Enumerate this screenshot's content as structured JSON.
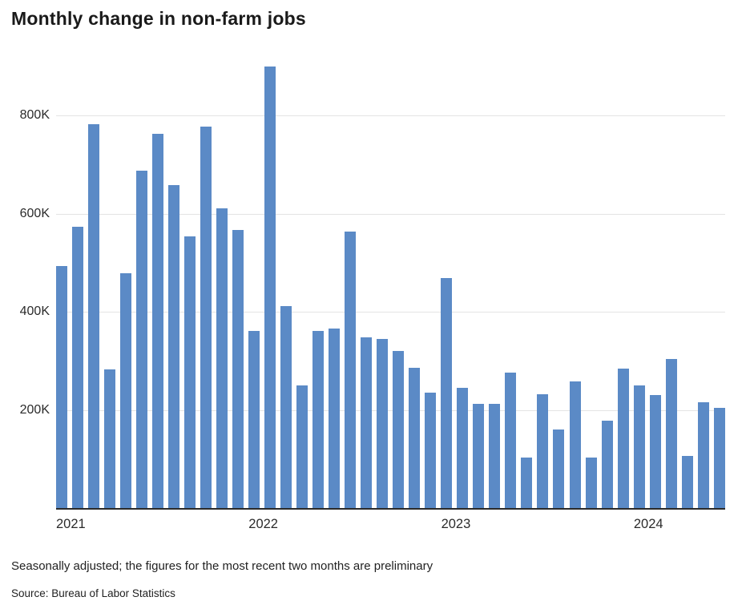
{
  "chart": {
    "title": "Monthly change in non-farm jobs",
    "note": "Seasonally adjusted; the figures for the most recent two months are preliminary",
    "source": "Source: Bureau of Labor Statistics"
  },
  "chart_data": {
    "type": "bar",
    "title": "Monthly change in non-farm jobs",
    "unit": "thousands of jobs",
    "categories": [
      "Jan 2021",
      "Feb 2021",
      "Mar 2021",
      "Apr 2021",
      "May 2021",
      "Jun 2021",
      "Jul 2021",
      "Aug 2021",
      "Sep 2021",
      "Oct 2021",
      "Nov 2021",
      "Dec 2021",
      "Jan 2022",
      "Feb 2022",
      "Mar 2022",
      "Apr 2022",
      "May 2022",
      "Jun 2022",
      "Jul 2022",
      "Aug 2022",
      "Sep 2022",
      "Oct 2022",
      "Nov 2022",
      "Dec 2022",
      "Jan 2023",
      "Feb 2023",
      "Mar 2023",
      "Apr 2023",
      "May 2023",
      "Jun 2023",
      "Jul 2023",
      "Aug 2023",
      "Sep 2023",
      "Oct 2023",
      "Nov 2023",
      "Dec 2023",
      "Jan 2024",
      "Feb 2024",
      "Mar 2024",
      "Apr 2024",
      "May 2024",
      "Jun 2024"
    ],
    "values": [
      495,
      575,
      785,
      285,
      480,
      690,
      765,
      660,
      555,
      780,
      612,
      568,
      362,
      902,
      413,
      251,
      362,
      368,
      565,
      350,
      347,
      322,
      288,
      237,
      470,
      246,
      214,
      214,
      278,
      104,
      234,
      162,
      260,
      104,
      180,
      286,
      252,
      232,
      306,
      108,
      218,
      206
    ],
    "xlabel": "",
    "ylabel": "",
    "ylim": [
      0,
      915
    ],
    "yticks": [
      200,
      400,
      600,
      800
    ],
    "ytick_labels": [
      "200K",
      "400K",
      "600K",
      "800K"
    ],
    "xticks": [
      {
        "index": 0,
        "label": "2021"
      },
      {
        "index": 12,
        "label": "2022"
      },
      {
        "index": 24,
        "label": "2023"
      },
      {
        "index": 36,
        "label": "2024"
      }
    ],
    "legend": false,
    "grid": true,
    "bar_color": "#5b8ac6",
    "gridline_color": "#e4e4e4",
    "axis_color": "#2b2b2b"
  }
}
